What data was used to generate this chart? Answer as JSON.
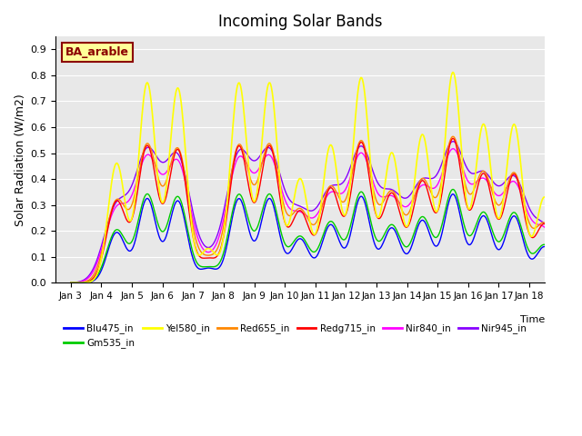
{
  "title": "Incoming Solar Bands",
  "xlabel": "Time",
  "ylabel": "Solar Radiation (W/m2)",
  "annotation": "BA_arable",
  "ylim": [
    0,
    0.95
  ],
  "yticks": [
    0.0,
    0.1,
    0.2,
    0.3,
    0.4,
    0.5,
    0.6,
    0.7,
    0.8,
    0.9
  ],
  "xtick_labels": [
    "Jan 3",
    "Jan 4",
    "Jan 5",
    "Jan 6",
    "Jan 7",
    "Jan 8",
    "Jan 9",
    "Jan 10",
    "Jan 11",
    "Jan 12",
    "Jan 13",
    "Jan 14",
    "Jan 15",
    "Jan 16",
    "Jan 17",
    "Jan 18"
  ],
  "series": {
    "Blu475_in": {
      "color": "#0000FF",
      "lw": 1.0
    },
    "Gm535_in": {
      "color": "#00CC00",
      "lw": 1.0
    },
    "Yel580_in": {
      "color": "#FFFF00",
      "lw": 1.2
    },
    "Red655_in": {
      "color": "#FF8800",
      "lw": 1.0
    },
    "Redg715_in": {
      "color": "#FF0000",
      "lw": 1.0
    },
    "Nir840_in": {
      "color": "#FF00FF",
      "lw": 1.0
    },
    "Nir945_in": {
      "color": "#8800FF",
      "lw": 1.0
    }
  },
  "legend_order": [
    "Blu475_in",
    "Gm535_in",
    "Yel580_in",
    "Red655_in",
    "Redg715_in",
    "Nir840_in",
    "Nir945_in"
  ],
  "background_color": "#e8e8e8",
  "annotation_bg": "#FFFF99",
  "annotation_border": "#8B0000",
  "day_peaks_yel": [
    0.0,
    0.46,
    0.77,
    0.75,
    0.13,
    0.77,
    0.77,
    0.4,
    0.53,
    0.79,
    0.5,
    0.57,
    0.81,
    0.61,
    0.61,
    0.33
  ],
  "scale": {
    "Yel580_in": 1.0,
    "Red655_in": 0.68,
    "Redg715_in": 0.68,
    "Nir840_in": 0.6,
    "Nir945_in": 0.62,
    "Blu475_in": 0.42,
    "Gm535_in": 0.44
  },
  "width": {
    "Yel580_in": 0.28,
    "Red655_in": 0.35,
    "Redg715_in": 0.32,
    "Nir840_in": 0.4,
    "Nir945_in": 0.42,
    "Blu475_in": 0.3,
    "Gm535_in": 0.32
  },
  "plot_order": [
    "Nir945_in",
    "Nir840_in",
    "Red655_in",
    "Redg715_in",
    "Blu475_in",
    "Gm535_in",
    "Yel580_in"
  ],
  "n_days": 16,
  "pts_per_day": 40
}
